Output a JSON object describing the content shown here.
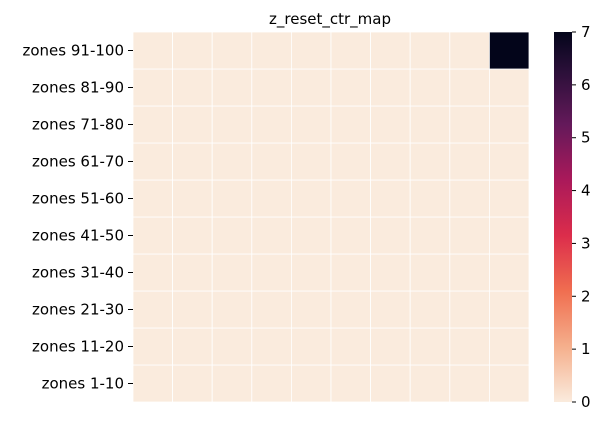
{
  "chart_data": {
    "type": "heatmap",
    "title": "z_reset_ctr_map",
    "y_categories": [
      "zones 1-10",
      "zones 11-20",
      "zones 21-30",
      "zones 31-40",
      "zones 41-50",
      "zones 51-60",
      "zones 61-70",
      "zones 71-80",
      "zones 81-90",
      "zones 91-100"
    ],
    "x_categories_count": 10,
    "values": [
      [
        0,
        0,
        0,
        0,
        0,
        0,
        0,
        0,
        0,
        0
      ],
      [
        0,
        0,
        0,
        0,
        0,
        0,
        0,
        0,
        0,
        0
      ],
      [
        0,
        0,
        0,
        0,
        0,
        0,
        0,
        0,
        0,
        0
      ],
      [
        0,
        0,
        0,
        0,
        0,
        0,
        0,
        0,
        0,
        0
      ],
      [
        0,
        0,
        0,
        0,
        0,
        0,
        0,
        0,
        0,
        0
      ],
      [
        0,
        0,
        0,
        0,
        0,
        0,
        0,
        0,
        0,
        0
      ],
      [
        0,
        0,
        0,
        0,
        0,
        0,
        0,
        0,
        0,
        0
      ],
      [
        0,
        0,
        0,
        0,
        0,
        0,
        0,
        0,
        0,
        0
      ],
      [
        0,
        0,
        0,
        0,
        0,
        0,
        0,
        0,
        0,
        0
      ],
      [
        0,
        0,
        0,
        0,
        0,
        0,
        0,
        0,
        0,
        7
      ]
    ],
    "colorbar": {
      "min": 0,
      "max": 7,
      "ticks": [
        0,
        1,
        2,
        3,
        4,
        5,
        6,
        7
      ]
    },
    "colormap": "rocket_r",
    "colors": {
      "low": "#faebdd",
      "high": "#03051a",
      "cell_border": "#ffffff"
    },
    "xtick_labels_shown": false,
    "grid": false
  }
}
